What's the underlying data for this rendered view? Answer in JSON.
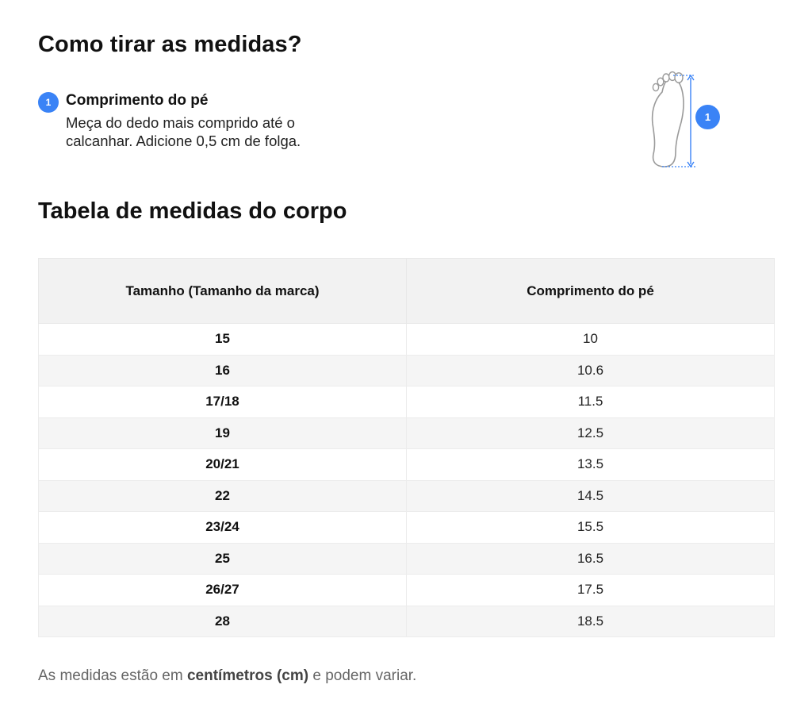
{
  "measure": {
    "title": "Como tirar as medidas?",
    "step": {
      "number": "1",
      "title": "Comprimento do pé",
      "description": "Meça do dedo mais comprido até o calcanhar. Adicione 0,5 cm de folga."
    },
    "illustration_badge": "1",
    "accent_color": "#3a83f6"
  },
  "table": {
    "title": "Tabela de medidas do corpo",
    "headers": [
      "Tamanho (Tamanho da marca)",
      "Comprimento do pé"
    ],
    "rows": [
      [
        "15",
        "10"
      ],
      [
        "16",
        "10.6"
      ],
      [
        "17/18",
        "11.5"
      ],
      [
        "19",
        "12.5"
      ],
      [
        "20/21",
        "13.5"
      ],
      [
        "22",
        "14.5"
      ],
      [
        "23/24",
        "15.5"
      ],
      [
        "25",
        "16.5"
      ],
      [
        "26/27",
        "17.5"
      ],
      [
        "28",
        "18.5"
      ]
    ]
  },
  "note": {
    "prefix": "As medidas estão em ",
    "bold": "centímetros (cm)",
    "suffix": " e podem variar."
  }
}
